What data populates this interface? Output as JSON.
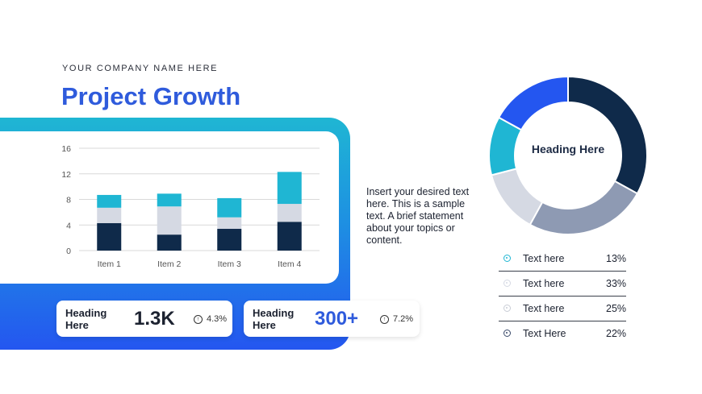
{
  "header": {
    "company": "YOUR COMPANY NAME HERE",
    "title": "Project Growth"
  },
  "chart_data": {
    "type": "bar",
    "stacked": true,
    "categories": [
      "Item 1",
      "Item 2",
      "Item 3",
      "Item 4"
    ],
    "series": [
      {
        "values": [
          4.3,
          2.5,
          3.4,
          4.5
        ],
        "color": "#0f2a4a"
      },
      {
        "values": [
          2.4,
          4.4,
          1.8,
          2.8
        ],
        "color": "#d5d9e3"
      },
      {
        "values": [
          2.0,
          2.0,
          3.0,
          5.0
        ],
        "color": "#1fb6d3"
      }
    ],
    "yticks": [
      "0",
      "4",
      "8",
      "12",
      "16"
    ],
    "ylim": [
      0,
      16
    ],
    "grid": true
  },
  "stats": [
    {
      "heading": "Heading\nHere",
      "value": "1.3K",
      "value_color": "#1c2230",
      "icon": "up-arrow-icon",
      "pct": "4.3%"
    },
    {
      "heading": "Heading\nHere",
      "value": "300+",
      "value_color": "#2f5bdc",
      "icon": "up-arrow-icon",
      "pct": "7.2%"
    }
  ],
  "description": "Insert your desired text here. This is a sample text. A brief statement about your topics or content.",
  "donut": {
    "center_label": "Heading Here",
    "slices": [
      {
        "value": 33,
        "color": "#0f2a4a"
      },
      {
        "value": 25,
        "color": "#8e9ab3"
      },
      {
        "value": 13,
        "color": "#d5d9e3"
      },
      {
        "value": 12,
        "color": "#1fb6d3"
      },
      {
        "value": 17,
        "color": "#2456f0"
      }
    ]
  },
  "legend": [
    {
      "label": "Text here",
      "pct": "13%",
      "icon_color": "#1fb6d3"
    },
    {
      "label": "Text here",
      "pct": "33%",
      "icon_color": "#d5d9e3"
    },
    {
      "label": "Text here",
      "pct": "25%",
      "icon_color": "#c8ccd5"
    },
    {
      "label": "Text Here",
      "pct": "22%",
      "icon_color": "#3a4a6a"
    }
  ]
}
